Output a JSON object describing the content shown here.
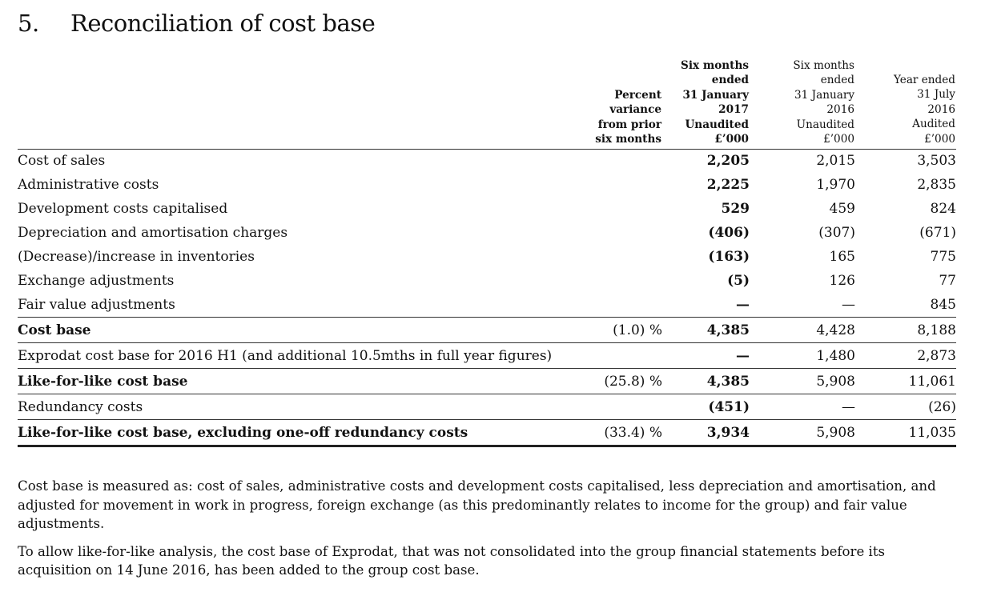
{
  "section": {
    "number": "5.",
    "title": "Reconciliation of cost base"
  },
  "columns": [
    {
      "lines": [
        "Percent",
        "variance",
        "from prior",
        "six months"
      ]
    },
    {
      "lines": [
        "Six months",
        "ended",
        "31 January",
        "2017",
        "Unaudited",
        "£’000"
      ]
    },
    {
      "lines": [
        "Six months",
        "ended",
        "31 January",
        "2016",
        "Unaudited",
        "£’000"
      ]
    },
    {
      "lines": [
        "Year ended",
        "31 July",
        "2016",
        "Audited",
        "£’000"
      ]
    }
  ],
  "rows": [
    {
      "label": "Cost of sales",
      "pct": "",
      "v1": "2,205",
      "v2": "2,015",
      "v3": "3,503"
    },
    {
      "label": "Administrative costs",
      "pct": "",
      "v1": "2,225",
      "v2": "1,970",
      "v3": "2,835"
    },
    {
      "label": "Development costs capitalised",
      "pct": "",
      "v1": "529",
      "v2": "459",
      "v3": "824"
    },
    {
      "label": "Depreciation and amortisation charges",
      "pct": "",
      "v1": "(406)",
      "v2": "(307)",
      "v3": "(671)"
    },
    {
      "label": "(Decrease)/increase in inventories",
      "pct": "",
      "v1": "(163)",
      "v2": "165",
      "v3": "775"
    },
    {
      "label": "Exchange adjustments",
      "pct": "",
      "v1": "(5)",
      "v2": "126",
      "v3": "77"
    },
    {
      "label": "Fair value adjustments",
      "pct": "",
      "v1": "—",
      "v2": "—",
      "v3": "845"
    },
    {
      "label": "Cost base",
      "pct": "(1.0) %",
      "v1": "4,385",
      "v2": "4,428",
      "v3": "8,188"
    },
    {
      "label": "Exprodat cost base for 2016 H1 (and additional 10.5mths in full year figures)",
      "pct": "",
      "v1": "—",
      "v2": "1,480",
      "v3": "2,873"
    },
    {
      "label": "Like-for-like cost base",
      "pct": "(25.8) %",
      "v1": "4,385",
      "v2": "5,908",
      "v3": "11,061"
    },
    {
      "label": "Redundancy costs",
      "pct": "",
      "v1": "(451)",
      "v2": "—",
      "v3": "(26)"
    },
    {
      "label": "Like-for-like cost base, excluding one-off redundancy costs",
      "pct": "(33.4) %",
      "v1": "3,934",
      "v2": "5,908",
      "v3": "11,035"
    }
  ],
  "notes": [
    "Cost base is measured as: cost of sales, administrative costs and development costs capitalised, less depreciation and amortisation, and adjusted for movement in work in progress, foreign exchange (as this predominantly relates to income for the group) and fair value adjustments.",
    "To allow like-for-like analysis, the cost base of Exprodat, that was not consolidated into the group financial statements before its acquisition on 14 June 2016, has been added to the group cost base."
  ]
}
